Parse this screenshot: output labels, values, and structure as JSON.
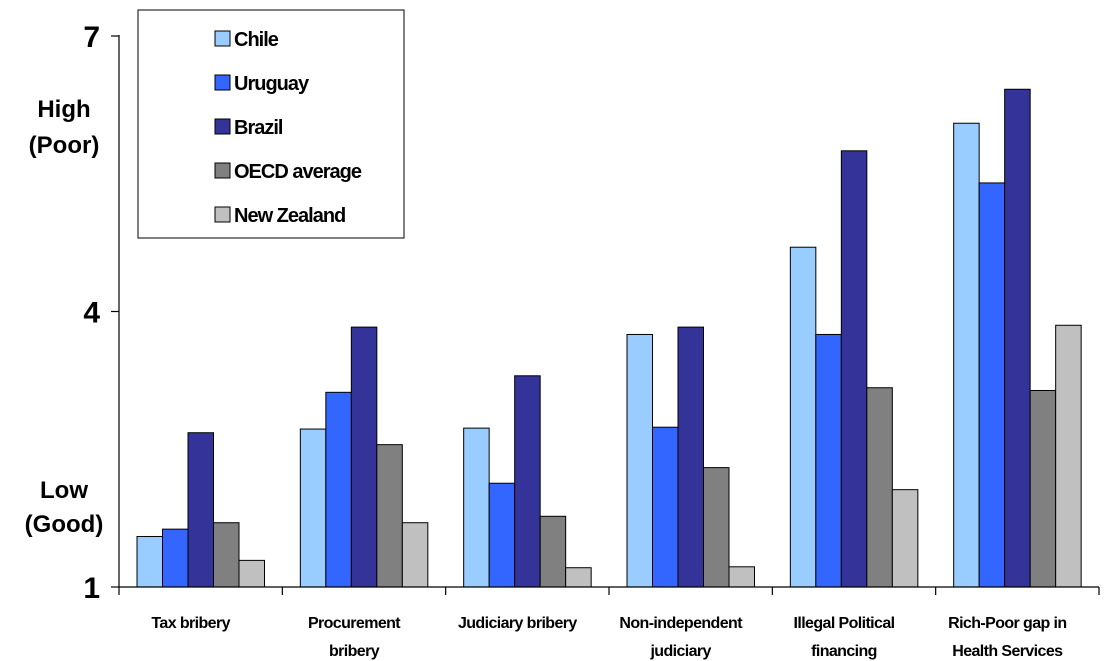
{
  "chart_data": {
    "type": "bar",
    "title": "",
    "xlabel": "",
    "ylabel": "",
    "ylim": [
      1,
      7
    ],
    "y_ticks": [
      "1",
      "4",
      "7"
    ],
    "side_labels": {
      "high_1": "High",
      "high_2": "(Poor)",
      "low_1": "Low",
      "low_2": "(Good)"
    },
    "categories": [
      [
        "Tax bribery"
      ],
      [
        "Procurement",
        "bribery"
      ],
      [
        "Judiciary bribery"
      ],
      [
        "Non-independent",
        "judiciary"
      ],
      [
        "Illegal Political",
        "financing"
      ],
      [
        "Rich-Poor gap in",
        "Health Services"
      ]
    ],
    "series": [
      {
        "name": "Chile",
        "color": "#99CCFF",
        "values": [
          1.55,
          2.72,
          2.73,
          3.75,
          4.7,
          6.05
        ]
      },
      {
        "name": "Uruguay",
        "color": "#3366FF",
        "values": [
          1.63,
          3.12,
          2.13,
          2.74,
          3.75,
          5.4
        ]
      },
      {
        "name": "Brazil",
        "color": "#333399",
        "values": [
          2.68,
          3.83,
          3.3,
          3.83,
          5.75,
          6.42
        ]
      },
      {
        "name": "OECD average",
        "color": "#808080",
        "values": [
          1.7,
          2.55,
          1.77,
          2.3,
          3.17,
          3.14
        ]
      },
      {
        "name": "New Zealand",
        "color": "#C0C0C0",
        "values": [
          1.29,
          1.7,
          1.21,
          1.22,
          2.06,
          3.85
        ]
      }
    ],
    "grid": false,
    "legend_position": "top-left"
  }
}
